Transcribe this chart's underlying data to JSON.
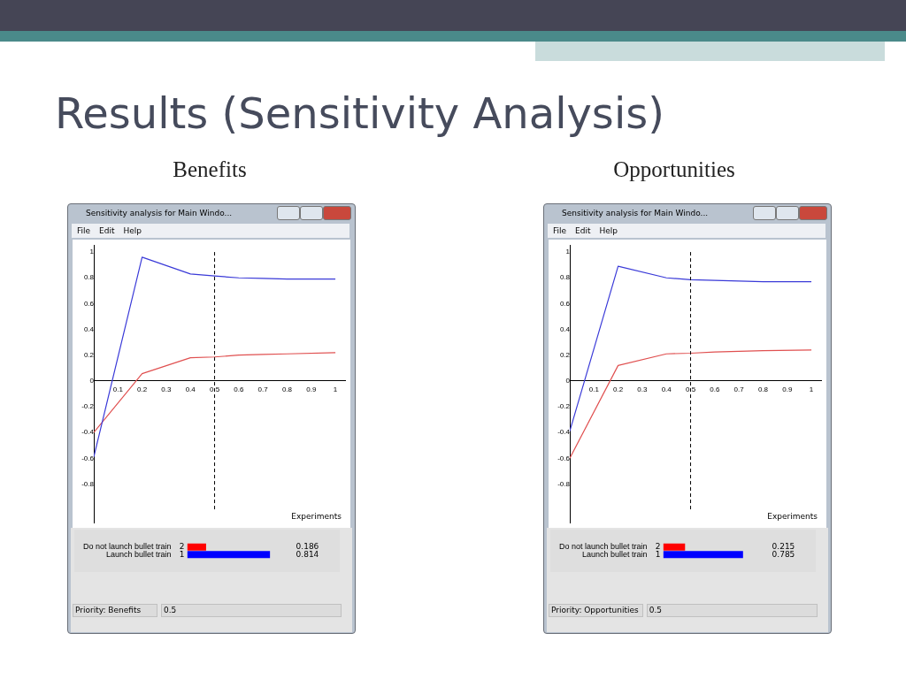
{
  "chart_data": [
    {
      "type": "line",
      "title": "Benefits",
      "xlabel": "Experiments",
      "xlim": [
        0,
        1.04
      ],
      "ylim": [
        -1.1,
        1.05
      ],
      "xticks": [
        0.1,
        0.2,
        0.3,
        0.4,
        0.5,
        0.6,
        0.7,
        0.8,
        0.9,
        1
      ],
      "yticks": [
        -0.8,
        -0.6,
        -0.4,
        -0.2,
        0,
        0.2,
        0.4,
        0.6,
        0.8,
        1
      ],
      "grid": false,
      "legend": false,
      "series": [
        {
          "color": "#3a3ad8",
          "x": [
            0,
            0.2,
            0.4,
            0.5,
            0.6,
            0.7,
            0.8,
            1
          ],
          "values": [
            -0.59,
            0.96,
            0.83,
            0.814,
            0.8,
            0.795,
            0.79,
            0.79
          ]
        },
        {
          "color": "#e05050",
          "x": [
            0,
            0.2,
            0.4,
            0.5,
            0.6,
            0.7,
            0.8,
            1
          ],
          "values": [
            -0.4,
            0.056,
            0.18,
            0.186,
            0.2,
            0.205,
            0.21,
            0.22
          ]
        }
      ],
      "ref_lines": [
        {
          "axis": "x",
          "value": 0.5,
          "line_style": "dashed",
          "color": "#000000"
        }
      ],
      "annotations": [
        "Results (Sensitivity Analysis)",
        "Sensitivity analysis for Main Windo...",
        "File",
        "Edit",
        "Help"
      ]
    },
    {
      "type": "bar",
      "orientation": "horizontal",
      "categories": [
        "Do not launch bullet train",
        "Launch bullet train"
      ],
      "values": [
        0.186,
        0.814
      ],
      "colors": [
        "#ff0000",
        "#0000ff"
      ],
      "xlim": [
        0,
        1.5
      ],
      "tick_labels": "y",
      "data_labels": true,
      "legend": false,
      "annotations": [
        "2",
        "1",
        "Priority: Benefits",
        "0.5"
      ]
    },
    {
      "type": "line",
      "title": "Opportunities",
      "xlabel": "Experiments",
      "xlim": [
        0,
        1.04
      ],
      "ylim": [
        -1.1,
        1.05
      ],
      "xticks": [
        0.1,
        0.2,
        0.3,
        0.4,
        0.5,
        0.6,
        0.7,
        0.8,
        0.9,
        1
      ],
      "yticks": [
        -0.8,
        -0.6,
        -0.4,
        -0.2,
        0,
        0.2,
        0.4,
        0.6,
        0.8,
        1
      ],
      "grid": false,
      "legend": false,
      "series": [
        {
          "color": "#3a3ad8",
          "x": [
            0,
            0.2,
            0.4,
            0.5,
            0.6,
            0.7,
            0.8,
            1
          ],
          "values": [
            -0.39,
            0.89,
            0.8,
            0.785,
            0.78,
            0.775,
            0.77,
            0.77
          ]
        },
        {
          "color": "#e05050",
          "x": [
            0,
            0.2,
            0.4,
            0.5,
            0.6,
            0.7,
            0.8,
            1
          ],
          "values": [
            -0.6,
            0.12,
            0.21,
            0.215,
            0.225,
            0.23,
            0.235,
            0.24
          ]
        }
      ],
      "ref_lines": [
        {
          "axis": "x",
          "value": 0.5,
          "line_style": "dashed",
          "color": "#000000"
        }
      ],
      "annotations": [
        "Sensitivity analysis for Main Windo...",
        "File",
        "Edit",
        "Help"
      ]
    },
    {
      "type": "bar",
      "orientation": "horizontal",
      "categories": [
        "Do not launch bullet train",
        "Launch bullet train"
      ],
      "values": [
        0.215,
        0.785
      ],
      "colors": [
        "#ff0000",
        "#0000ff"
      ],
      "xlim": [
        0,
        1.5
      ],
      "tick_labels": "y",
      "data_labels": true,
      "legend": false,
      "annotations": [
        "2",
        "1",
        "Priority: Opportunities",
        "0.5"
      ]
    }
  ]
}
